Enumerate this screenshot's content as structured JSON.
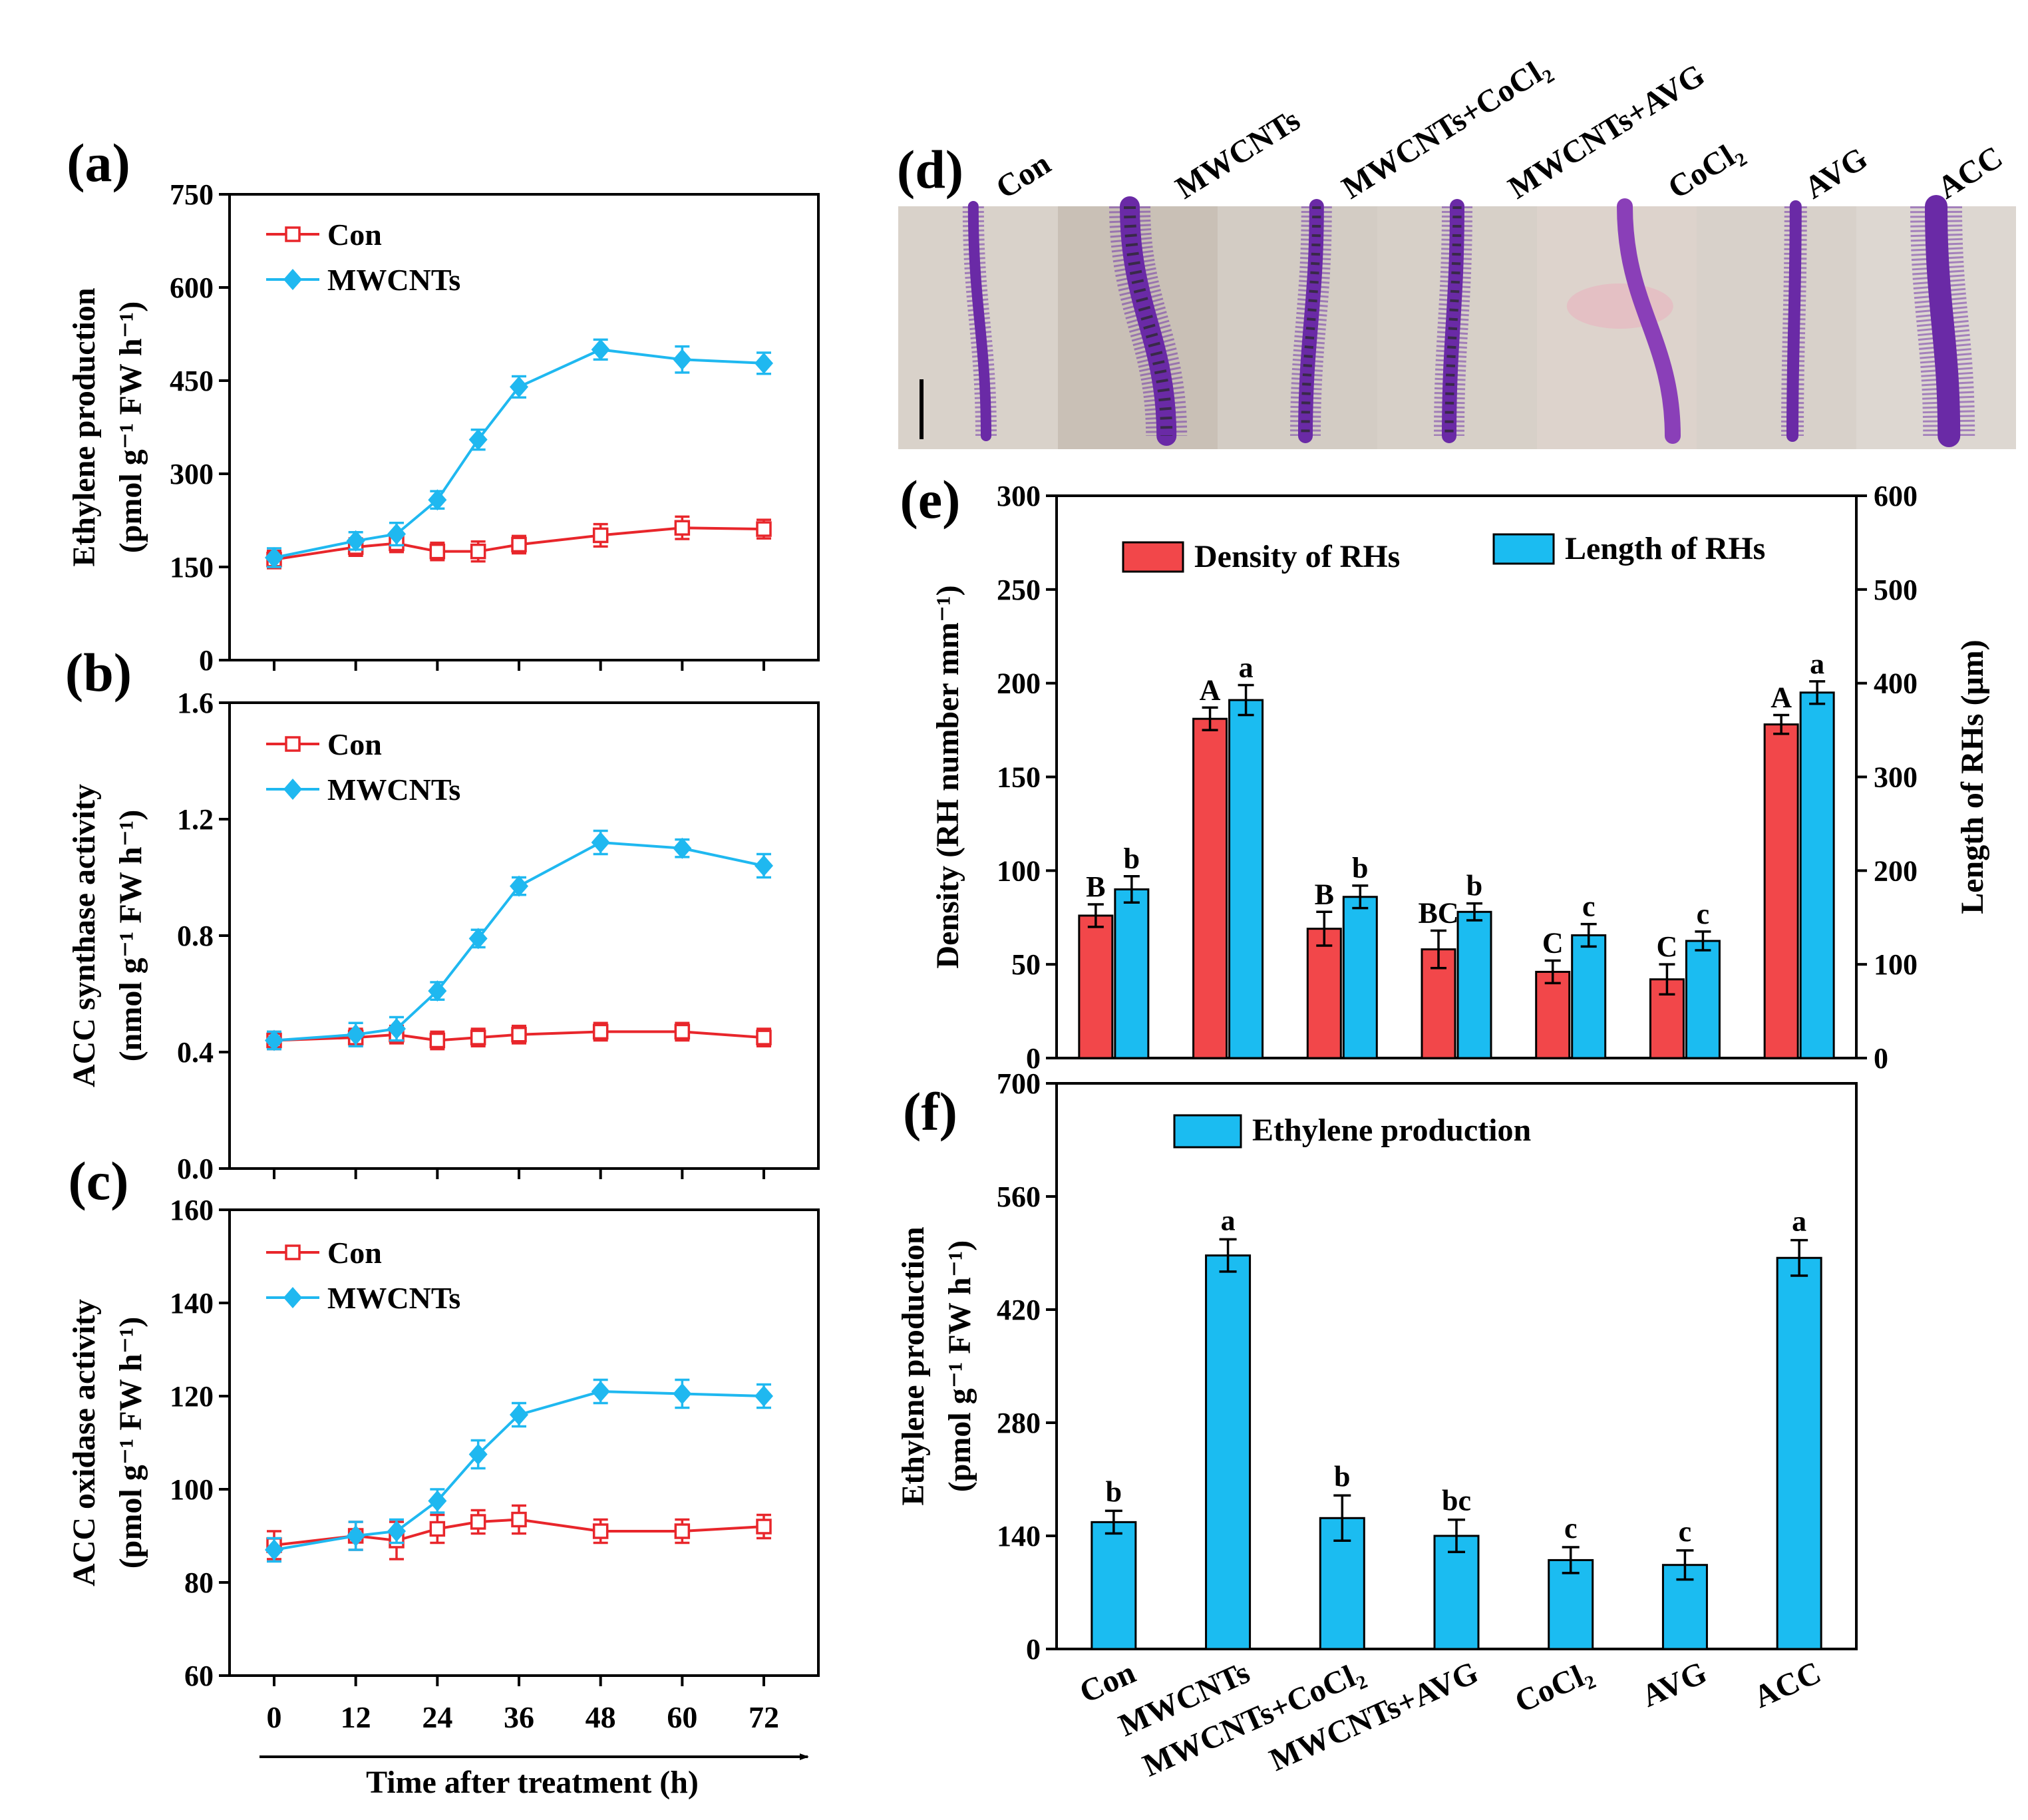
{
  "colors": {
    "con": "#e8262b",
    "mw": "#1fb8f0",
    "bar_red": "#f2474a",
    "bar_blue": "#1bbcf1",
    "root_purple": "#6a2aa6",
    "photo_bg": "#cdc4bb"
  },
  "time_axis": {
    "label": "Time after treatment (h)",
    "ticks": [
      "0",
      "12",
      "24",
      "36",
      "48",
      "60",
      "72"
    ]
  },
  "chart_data": [
    {
      "id": "a",
      "type": "line",
      "panel_label": "(a)",
      "ylabel_line1": "Ethylene production",
      "ylabel_line2": "(pmol g⁻¹ FW h⁻¹)",
      "ylim": [
        0,
        750
      ],
      "yticks": [
        "0",
        "150",
        "300",
        "450",
        "600",
        "750"
      ],
      "x": [
        0,
        12,
        18,
        24,
        30,
        36,
        48,
        60,
        72
      ],
      "series": [
        {
          "name": "Con",
          "values": [
            162,
            182,
            188,
            175,
            175,
            186,
            201,
            213,
            211
          ],
          "err": [
            14,
            14,
            14,
            14,
            16,
            14,
            18,
            18,
            15
          ]
        },
        {
          "name": "MWCNTs",
          "values": [
            165,
            192,
            203,
            258,
            355,
            440,
            500,
            484,
            478
          ],
          "err": [
            15,
            14,
            18,
            14,
            16,
            17,
            16,
            21,
            17
          ]
        }
      ]
    },
    {
      "id": "b",
      "type": "line",
      "panel_label": "(b)",
      "ylabel_line1": "ACC synthase activity",
      "ylabel_line2": "(nmol g⁻¹ FW h⁻¹)",
      "ylim": [
        0.0,
        1.6
      ],
      "yticks": [
        "0.0",
        "0.4",
        "0.8",
        "1.2",
        "1.6"
      ],
      "x": [
        0,
        12,
        18,
        24,
        30,
        36,
        48,
        60,
        72
      ],
      "series": [
        {
          "name": "Con",
          "values": [
            0.44,
            0.45,
            0.46,
            0.44,
            0.45,
            0.46,
            0.47,
            0.47,
            0.45
          ],
          "err": [
            0.03,
            0.03,
            0.03,
            0.03,
            0.03,
            0.03,
            0.03,
            0.03,
            0.03
          ]
        },
        {
          "name": "MWCNTs",
          "values": [
            0.44,
            0.46,
            0.48,
            0.61,
            0.79,
            0.97,
            1.12,
            1.1,
            1.04
          ],
          "err": [
            0.03,
            0.04,
            0.04,
            0.03,
            0.03,
            0.03,
            0.04,
            0.03,
            0.04
          ]
        }
      ]
    },
    {
      "id": "c",
      "type": "line",
      "panel_label": "(c)",
      "ylabel_line1": "ACC oxidase activity",
      "ylabel_line2": "(pmol g⁻¹ FW h⁻¹)",
      "ylim": [
        60,
        160
      ],
      "yticks": [
        "60",
        "80",
        "100",
        "120",
        "140",
        "160"
      ],
      "x": [
        0,
        12,
        18,
        24,
        30,
        36,
        48,
        60,
        72
      ],
      "series": [
        {
          "name": "Con",
          "values": [
            88,
            90,
            89,
            91.5,
            93,
            93.5,
            91,
            91,
            92
          ],
          "err": [
            3,
            3,
            4,
            3,
            2.5,
            3,
            2.5,
            2.5,
            2.5
          ]
        },
        {
          "name": "MWCNTs",
          "values": [
            87,
            90,
            91,
            97.5,
            107.5,
            116,
            121,
            120.5,
            120
          ],
          "err": [
            2.5,
            3,
            2.5,
            2.5,
            3,
            2.5,
            2.5,
            3,
            2.5
          ]
        }
      ]
    },
    {
      "id": "e",
      "type": "bar",
      "panel_label": "(e)",
      "ylabel_left_line1": "Density (RH number mm⁻¹)",
      "ylabel_right": "Length of RHs (μm)",
      "ylim_left": [
        0,
        300
      ],
      "yticks_left": [
        "0",
        "50",
        "100",
        "150",
        "200",
        "250",
        "300"
      ],
      "ylim_right": [
        0,
        600
      ],
      "yticks_right": [
        "0",
        "100",
        "200",
        "300",
        "400",
        "500",
        "600"
      ],
      "categories": [
        "Con",
        "MWCNTs",
        "MWCNTs+CoCl₂",
        "MWCNTs+AVG",
        "CoCl₂",
        "AVG",
        "ACC"
      ],
      "series": [
        {
          "name": "Density of RHs",
          "axis": "left",
          "values": [
            76,
            181,
            69,
            58,
            46,
            42,
            178
          ],
          "err": [
            6,
            6,
            9,
            10,
            6,
            8,
            5
          ],
          "letters": [
            "B",
            "A",
            "B",
            "BC",
            "C",
            "C",
            "A"
          ]
        },
        {
          "name": "Length of RHs",
          "axis": "right",
          "values": [
            180,
            382,
            172,
            156,
            131,
            125,
            390
          ],
          "err": [
            14,
            16,
            12,
            9,
            12,
            10,
            12
          ],
          "letters": [
            "b",
            "a",
            "b",
            "b",
            "c",
            "c",
            "a"
          ]
        }
      ]
    },
    {
      "id": "f",
      "type": "bar",
      "panel_label": "(f)",
      "ylabel_line1": "Ethylene production",
      "ylabel_line2": "(pmol g⁻¹ FW h⁻¹)",
      "ylim": [
        0,
        700
      ],
      "yticks": [
        "0",
        "140",
        "280",
        "420",
        "560",
        "700"
      ],
      "categories": [
        "Con",
        "MWCNTs",
        "MWCNTs+CoCl₂",
        "MWCNTs+AVG",
        "CoCl₂",
        "AVG",
        "ACC"
      ],
      "series": [
        {
          "name": "Ethylene production",
          "values": [
            157,
            487,
            162,
            140,
            110,
            104,
            484
          ],
          "err": [
            14,
            20,
            28,
            20,
            16,
            18,
            22
          ],
          "letters": [
            "b",
            "a",
            "b",
            "bc",
            "c",
            "c",
            "a"
          ]
        }
      ]
    }
  ],
  "panel_d": {
    "panel_label": "(d)",
    "labels": [
      "Con",
      "MWCNTs",
      "MWCNTs+CoCl₂",
      "MWCNTs+AVG",
      "CoCl₂",
      "AVG",
      "ACC"
    ]
  }
}
